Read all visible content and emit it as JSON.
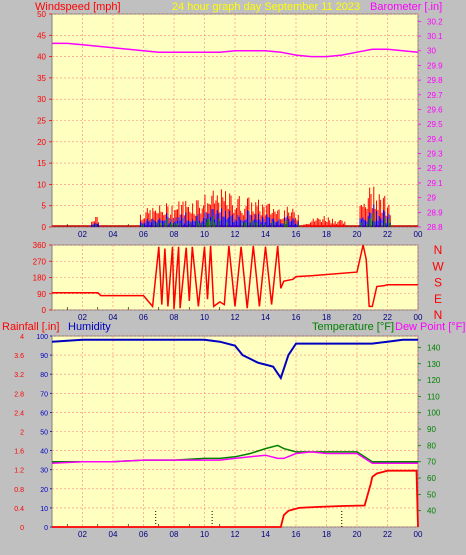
{
  "header": {
    "left_label": "Windspeed [mph]",
    "center_label": "24 hour graph day   September 11 2023",
    "right_label": "Barometer [.in]"
  },
  "colors": {
    "background": "#c0c0c0",
    "plot_bg": "#ffffc0",
    "grid": "#ff8080",
    "wind": "#ff0000",
    "wind_avg": "#0000ff",
    "wind_green": "#008000",
    "barometer": "#ff00ff",
    "direction": "#ff0000",
    "rainfall": "#ff0000",
    "humidity": "#0000c0",
    "temperature": "#008000",
    "dewpoint": "#ff00ff",
    "title_yellow": "#ffff00",
    "title_red": "#ff0000"
  },
  "chart_data": [
    {
      "type": "line",
      "name": "wind-barometer",
      "x_ticks": [
        "02",
        "04",
        "06",
        "08",
        "10",
        "12",
        "14",
        "16",
        "18",
        "20",
        "22",
        "00"
      ],
      "left_axis": {
        "ticks": [
          "0",
          "5",
          "10",
          "15",
          "20",
          "25",
          "30",
          "35",
          "40",
          "45",
          "50"
        ],
        "ylim": [
          0,
          50
        ]
      },
      "right_axis": {
        "ticks": [
          "28.8",
          "28.9",
          "29",
          "29.1",
          "29.2",
          "29.3",
          "29.4",
          "29.5",
          "29.6",
          "29.7",
          "29.8",
          "29.9",
          "30",
          "30.1",
          "30.2"
        ],
        "ylim": [
          28.8,
          30.25
        ]
      },
      "series": [
        {
          "name": "Barometer",
          "axis": "right",
          "x": [
            0,
            1,
            2,
            3,
            4,
            5,
            6,
            7,
            8,
            9,
            10,
            11,
            12,
            13,
            14,
            15,
            16,
            17,
            18,
            19,
            20,
            21,
            22,
            23,
            24
          ],
          "values": [
            30.05,
            30.05,
            30.04,
            30.03,
            30.02,
            30.01,
            30.0,
            29.99,
            29.99,
            29.99,
            29.99,
            29.99,
            30.0,
            30.0,
            30.0,
            29.99,
            29.97,
            29.96,
            29.96,
            29.97,
            29.99,
            30.01,
            30.01,
            30.0,
            29.99
          ]
        }
      ],
      "wind_gust_bursts": [
        {
          "x_start": 2.6,
          "x_end": 3.1,
          "max": 4
        },
        {
          "x_start": 5.8,
          "x_end": 16.2,
          "max": 9
        },
        {
          "x_start": 16.5,
          "x_end": 19.2,
          "max": 3
        },
        {
          "x_start": 20.2,
          "x_end": 22.2,
          "max": 12
        }
      ]
    },
    {
      "type": "line",
      "name": "wind-direction",
      "x_ticks": [
        "02",
        "04",
        "06",
        "08",
        "10",
        "12",
        "14",
        "16",
        "18",
        "20",
        "22",
        "00"
      ],
      "left_axis": {
        "ticks": [
          "0",
          "90",
          "180",
          "270",
          "360"
        ],
        "ylim": [
          0,
          360
        ]
      },
      "right_labels": [
        "N",
        "W",
        "S",
        "E",
        "N"
      ],
      "series": [
        {
          "name": "Direction",
          "x": [
            0,
            3,
            3.2,
            6,
            6.6,
            7.0,
            7.2,
            7.4,
            7.6,
            7.9,
            8.0,
            8.3,
            8.4,
            8.8,
            9.0,
            9.2,
            9.6,
            10.0,
            10.2,
            10.4,
            10.6,
            11.0,
            11.3,
            11.6,
            12.0,
            12.4,
            12.8,
            13.2,
            13.6,
            14.0,
            14.4,
            14.8,
            15.0,
            15.2,
            15.8,
            16.0,
            17.0,
            20.0,
            20.4,
            20.6,
            20.8,
            21.0,
            21.3,
            21.8,
            22.0,
            24.0
          ],
          "values": [
            95,
            95,
            80,
            80,
            20,
            350,
            30,
            340,
            20,
            350,
            5,
            350,
            10,
            345,
            50,
            350,
            20,
            350,
            60,
            355,
            20,
            45,
            30,
            355,
            20,
            350,
            10,
            355,
            20,
            350,
            30,
            355,
            120,
            160,
            170,
            185,
            190,
            210,
            360,
            280,
            20,
            20,
            130,
            135,
            140,
            140
          ]
        }
      ]
    },
    {
      "type": "line",
      "name": "rain-humidity-temp",
      "x_ticks": [
        "02",
        "04",
        "06",
        "08",
        "10",
        "12",
        "14",
        "16",
        "18",
        "20",
        "22",
        "00"
      ],
      "left_outer_axis": {
        "ticks": [
          "0",
          "0.4",
          "0.8",
          "1.2",
          "1.6",
          "2",
          "2.4",
          "2.8",
          "3.2",
          "3.6",
          "4"
        ],
        "ylim": [
          0,
          4
        ]
      },
      "left_inner_axis": {
        "ticks": [
          "0",
          "10",
          "20",
          "30",
          "40",
          "50",
          "60",
          "70",
          "80",
          "90",
          "100"
        ],
        "ylim": [
          0,
          100
        ]
      },
      "right_axis": {
        "ticks": [
          "40",
          "50",
          "60",
          "70",
          "80",
          "90",
          "100",
          "110",
          "120",
          "130",
          "140"
        ],
        "ylim": [
          30,
          147
        ]
      },
      "labels": {
        "rain": "Rainfall [.in]",
        "humidity": "Humidity",
        "temperature": "Temperature [°F]",
        "dewpoint": "Dew Point [°F]"
      },
      "series": [
        {
          "name": "Humidity",
          "axis": "inner",
          "x": [
            0,
            2,
            4,
            6,
            8,
            10,
            11,
            12,
            12.5,
            13,
            13.5,
            14,
            14.5,
            15,
            15.5,
            16,
            17,
            18,
            19,
            20,
            21,
            22,
            23,
            24
          ],
          "values": [
            97,
            98,
            98,
            98,
            98,
            98,
            97,
            95,
            90,
            88,
            86,
            85,
            84,
            78,
            90,
            96,
            96,
            96,
            96,
            96,
            96,
            97,
            98,
            98
          ]
        },
        {
          "name": "Temperature",
          "axis": "right",
          "x": [
            0,
            2,
            4,
            6,
            8,
            10,
            11,
            12,
            13,
            14,
            14.8,
            15.2,
            16,
            17,
            18,
            19,
            20,
            21,
            22,
            23,
            24
          ],
          "values": [
            70,
            70,
            70,
            71,
            71,
            72,
            72,
            73,
            75,
            78,
            80,
            78,
            76,
            76,
            76,
            76,
            76,
            70,
            70,
            70,
            70
          ]
        },
        {
          "name": "Dew Point",
          "axis": "right",
          "x": [
            0,
            2,
            4,
            6,
            8,
            10,
            11,
            12,
            13,
            14,
            14.8,
            15.2,
            16,
            17,
            18,
            19,
            20,
            21,
            22,
            23,
            24
          ],
          "values": [
            69,
            70,
            70,
            71,
            71,
            71,
            71,
            72,
            73,
            74,
            72,
            72,
            75,
            76,
            75,
            75,
            75,
            69,
            69,
            69,
            69
          ]
        },
        {
          "name": "Rainfall",
          "axis": "outer",
          "x": [
            0,
            15,
            15.2,
            15.5,
            16.2,
            17.5,
            19.0,
            20.5,
            20.9,
            21.0,
            21.3,
            22.0,
            23.9,
            24.0
          ],
          "values": [
            0,
            0,
            0.25,
            0.34,
            0.4,
            0.42,
            0.44,
            0.45,
            0.9,
            1.05,
            1.12,
            1.18,
            1.18,
            0
          ]
        }
      ]
    }
  ]
}
